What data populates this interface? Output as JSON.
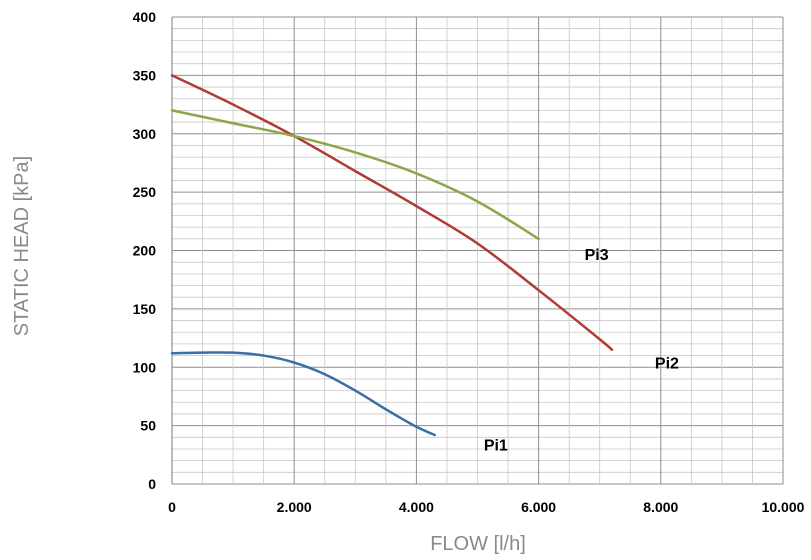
{
  "chart_data": {
    "type": "line",
    "xlabel": "FLOW [l/h]",
    "ylabel": "STATIC HEAD [kPa]",
    "xlim": [
      0,
      10000
    ],
    "ylim": [
      0,
      400
    ],
    "x_major_step": 2000,
    "x_minor_step": 500,
    "y_major_step": 50,
    "y_minor_step": 10,
    "x_tick_labels": [
      "0",
      "2.000",
      "4.000",
      "6.000",
      "8.000",
      "10.000"
    ],
    "y_tick_labels": [
      "0",
      "50",
      "100",
      "150",
      "200",
      "250",
      "300",
      "350",
      "400"
    ],
    "grid": true,
    "legend": "none",
    "series": [
      {
        "name": "Pi1",
        "color": "#3a6ea5",
        "x": [
          0,
          500,
          1000,
          1500,
          2000,
          2500,
          3000,
          3500,
          4000,
          4300
        ],
        "y": [
          112,
          112.5,
          112.5,
          110,
          104,
          94,
          80,
          64,
          49,
          42
        ],
        "label_at": [
          5300,
          34
        ]
      },
      {
        "name": "Pi2",
        "color": "#b03a36",
        "x": [
          0,
          1000,
          2000,
          3000,
          4000,
          5000,
          6000,
          7000,
          7200
        ],
        "y": [
          350,
          325,
          298,
          268,
          238,
          206,
          166,
          124,
          115
        ],
        "label_at": [
          8100,
          104
        ]
      },
      {
        "name": "Pi3",
        "color": "#8aa848",
        "x": [
          0,
          1000,
          2000,
          3000,
          4000,
          5000,
          6000
        ],
        "y": [
          320,
          309,
          298,
          284,
          266,
          242,
          210
        ],
        "label_at": [
          6950,
          197
        ]
      }
    ]
  }
}
